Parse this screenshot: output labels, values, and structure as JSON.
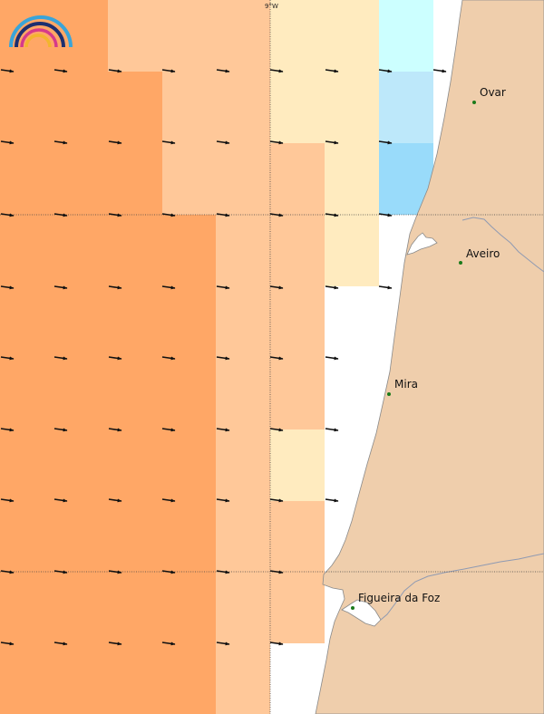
{
  "colors": {
    "land": "#EFCEAC",
    "coastline": "#8a8a8a",
    "river": "#8f9ab2",
    "water": "#ffffff",
    "grid": "#444444",
    "arrow": "#111111",
    "city_dot": "#1a7a1a",
    "levels": [
      "#FFA766",
      "#FFC899",
      "#FFEBBF",
      "#CCFFFF",
      "#BDE8FA",
      "#99DBFA"
    ]
  },
  "axis": {
    "longitude_label": "9°W"
  },
  "logo": {
    "icon": "rainbow-logo-icon"
  },
  "cities": [
    {
      "name": "Ovar"
    },
    {
      "name": "Aveiro"
    },
    {
      "name": "Mira"
    },
    {
      "name": "Figueira da Foz"
    }
  ],
  "wind_arrow_icon": "arrow-right-icon"
}
